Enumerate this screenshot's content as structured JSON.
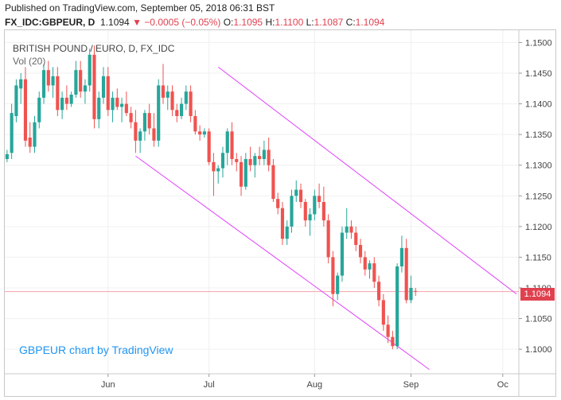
{
  "header": {
    "published": "Published on TradingView.com, September 05, 2018 06:31 BST",
    "symbol": "FX_IDC:GBPEUR, D",
    "last": "1.1094",
    "change": "−0.0005 (−0.05%)",
    "open_key": "O:",
    "open_val": "1.1095",
    "high_key": "H:",
    "high_val": "1.1100",
    "low_key": "L:",
    "low_val": "1.1087",
    "close_key": "C:",
    "close_val": "1.1094",
    "down_arrow": "▼"
  },
  "legend": {
    "title": "BRITISH POUND / EURO, D, FX_IDC",
    "volume": "Vol (20)"
  },
  "watermark": "GBPEUR chart by TradingView",
  "price_tag": "1.1094",
  "colors": {
    "up": "#26a69a",
    "down": "#ef5350",
    "channel": "#e040fb",
    "price_line": "#f4a0a8",
    "axis_text": "#444444"
  },
  "chart_data": {
    "type": "candlestick",
    "symbol": "GBPEUR",
    "interval": "D",
    "ylim": [
      1.096,
      1.152
    ],
    "y_ticks": [
      "1.1500",
      "1.1450",
      "1.1400",
      "1.1350",
      "1.1300",
      "1.1250",
      "1.1200",
      "1.1150",
      "1.1100",
      "1.1050",
      "1.1000"
    ],
    "x_ticks": [
      {
        "label": "Jun",
        "index": 22
      },
      {
        "label": "Jul",
        "index": 44
      },
      {
        "label": "Aug",
        "index": 67
      },
      {
        "label": "Sep",
        "index": 88
      },
      {
        "label": "Oc",
        "index": 108
      }
    ],
    "x_count": 112,
    "last_price": 1.1094,
    "candles": [
      {
        "o": 1.131,
        "h": 1.1325,
        "l": 1.1305,
        "c": 1.1318
      },
      {
        "o": 1.132,
        "h": 1.14,
        "l": 1.131,
        "c": 1.1385
      },
      {
        "o": 1.138,
        "h": 1.144,
        "l": 1.137,
        "c": 1.143
      },
      {
        "o": 1.1425,
        "h": 1.145,
        "l": 1.14,
        "c": 1.144
      },
      {
        "o": 1.144,
        "h": 1.146,
        "l": 1.133,
        "c": 1.134
      },
      {
        "o": 1.1345,
        "h": 1.137,
        "l": 1.132,
        "c": 1.133
      },
      {
        "o": 1.133,
        "h": 1.138,
        "l": 1.132,
        "c": 1.137
      },
      {
        "o": 1.137,
        "h": 1.142,
        "l": 1.136,
        "c": 1.141
      },
      {
        "o": 1.141,
        "h": 1.1465,
        "l": 1.14,
        "c": 1.1455
      },
      {
        "o": 1.1455,
        "h": 1.147,
        "l": 1.142,
        "c": 1.143
      },
      {
        "o": 1.143,
        "h": 1.146,
        "l": 1.141,
        "c": 1.1445
      },
      {
        "o": 1.1445,
        "h": 1.146,
        "l": 1.138,
        "c": 1.139
      },
      {
        "o": 1.139,
        "h": 1.142,
        "l": 1.1375,
        "c": 1.141
      },
      {
        "o": 1.141,
        "h": 1.143,
        "l": 1.139,
        "c": 1.14
      },
      {
        "o": 1.14,
        "h": 1.142,
        "l": 1.1395,
        "c": 1.1415
      },
      {
        "o": 1.1415,
        "h": 1.147,
        "l": 1.141,
        "c": 1.1455
      },
      {
        "o": 1.1455,
        "h": 1.147,
        "l": 1.141,
        "c": 1.142
      },
      {
        "o": 1.142,
        "h": 1.144,
        "l": 1.14,
        "c": 1.143
      },
      {
        "o": 1.143,
        "h": 1.149,
        "l": 1.142,
        "c": 1.148
      },
      {
        "o": 1.148,
        "h": 1.1495,
        "l": 1.136,
        "c": 1.1375
      },
      {
        "o": 1.1375,
        "h": 1.142,
        "l": 1.136,
        "c": 1.141
      },
      {
        "o": 1.141,
        "h": 1.146,
        "l": 1.14,
        "c": 1.1445
      },
      {
        "o": 1.1445,
        "h": 1.146,
        "l": 1.138,
        "c": 1.139
      },
      {
        "o": 1.139,
        "h": 1.142,
        "l": 1.137,
        "c": 1.141
      },
      {
        "o": 1.141,
        "h": 1.1425,
        "l": 1.139,
        "c": 1.1395
      },
      {
        "o": 1.1395,
        "h": 1.141,
        "l": 1.137,
        "c": 1.14
      },
      {
        "o": 1.14,
        "h": 1.142,
        "l": 1.138,
        "c": 1.1385
      },
      {
        "o": 1.1385,
        "h": 1.1395,
        "l": 1.136,
        "c": 1.137
      },
      {
        "o": 1.137,
        "h": 1.139,
        "l": 1.132,
        "c": 1.134
      },
      {
        "o": 1.134,
        "h": 1.136,
        "l": 1.132,
        "c": 1.1355
      },
      {
        "o": 1.1355,
        "h": 1.139,
        "l": 1.134,
        "c": 1.1385
      },
      {
        "o": 1.1385,
        "h": 1.14,
        "l": 1.135,
        "c": 1.136
      },
      {
        "o": 1.136,
        "h": 1.1385,
        "l": 1.133,
        "c": 1.134
      },
      {
        "o": 1.134,
        "h": 1.144,
        "l": 1.133,
        "c": 1.143
      },
      {
        "o": 1.143,
        "h": 1.1465,
        "l": 1.14,
        "c": 1.141
      },
      {
        "o": 1.141,
        "h": 1.143,
        "l": 1.139,
        "c": 1.142
      },
      {
        "o": 1.142,
        "h": 1.143,
        "l": 1.138,
        "c": 1.139
      },
      {
        "o": 1.139,
        "h": 1.14,
        "l": 1.137,
        "c": 1.138
      },
      {
        "o": 1.138,
        "h": 1.141,
        "l": 1.1375,
        "c": 1.14
      },
      {
        "o": 1.14,
        "h": 1.143,
        "l": 1.139,
        "c": 1.142
      },
      {
        "o": 1.142,
        "h": 1.143,
        "l": 1.137,
        "c": 1.138
      },
      {
        "o": 1.138,
        "h": 1.139,
        "l": 1.135,
        "c": 1.1355
      },
      {
        "o": 1.1355,
        "h": 1.1365,
        "l": 1.134,
        "c": 1.135
      },
      {
        "o": 1.135,
        "h": 1.136,
        "l": 1.1345,
        "c": 1.1355
      },
      {
        "o": 1.1355,
        "h": 1.136,
        "l": 1.13,
        "c": 1.1305
      },
      {
        "o": 1.1305,
        "h": 1.132,
        "l": 1.125,
        "c": 1.129
      },
      {
        "o": 1.129,
        "h": 1.13,
        "l": 1.127,
        "c": 1.1295
      },
      {
        "o": 1.1295,
        "h": 1.133,
        "l": 1.128,
        "c": 1.132
      },
      {
        "o": 1.132,
        "h": 1.136,
        "l": 1.13,
        "c": 1.1355
      },
      {
        "o": 1.1355,
        "h": 1.137,
        "l": 1.13,
        "c": 1.131
      },
      {
        "o": 1.131,
        "h": 1.132,
        "l": 1.129,
        "c": 1.1305
      },
      {
        "o": 1.1305,
        "h": 1.1315,
        "l": 1.125,
        "c": 1.1265
      },
      {
        "o": 1.1265,
        "h": 1.132,
        "l": 1.126,
        "c": 1.131
      },
      {
        "o": 1.131,
        "h": 1.133,
        "l": 1.129,
        "c": 1.13
      },
      {
        "o": 1.13,
        "h": 1.132,
        "l": 1.128,
        "c": 1.1315
      },
      {
        "o": 1.1315,
        "h": 1.133,
        "l": 1.13,
        "c": 1.131
      },
      {
        "o": 1.131,
        "h": 1.134,
        "l": 1.13,
        "c": 1.1325
      },
      {
        "o": 1.1325,
        "h": 1.1345,
        "l": 1.129,
        "c": 1.13
      },
      {
        "o": 1.13,
        "h": 1.131,
        "l": 1.124,
        "c": 1.1245
      },
      {
        "o": 1.1245,
        "h": 1.1255,
        "l": 1.122,
        "c": 1.123
      },
      {
        "o": 1.123,
        "h": 1.124,
        "l": 1.117,
        "c": 1.118
      },
      {
        "o": 1.118,
        "h": 1.121,
        "l": 1.117,
        "c": 1.12
      },
      {
        "o": 1.12,
        "h": 1.126,
        "l": 1.119,
        "c": 1.125
      },
      {
        "o": 1.125,
        "h": 1.1275,
        "l": 1.124,
        "c": 1.126
      },
      {
        "o": 1.126,
        "h": 1.127,
        "l": 1.123,
        "c": 1.124
      },
      {
        "o": 1.124,
        "h": 1.1245,
        "l": 1.12,
        "c": 1.121
      },
      {
        "o": 1.121,
        "h": 1.123,
        "l": 1.1185,
        "c": 1.122
      },
      {
        "o": 1.122,
        "h": 1.126,
        "l": 1.121,
        "c": 1.125
      },
      {
        "o": 1.125,
        "h": 1.127,
        "l": 1.123,
        "c": 1.124
      },
      {
        "o": 1.124,
        "h": 1.1265,
        "l": 1.12,
        "c": 1.121
      },
      {
        "o": 1.121,
        "h": 1.122,
        "l": 1.114,
        "c": 1.115
      },
      {
        "o": 1.115,
        "h": 1.116,
        "l": 1.107,
        "c": 1.109
      },
      {
        "o": 1.109,
        "h": 1.1125,
        "l": 1.108,
        "c": 1.112
      },
      {
        "o": 1.112,
        "h": 1.12,
        "l": 1.111,
        "c": 1.119
      },
      {
        "o": 1.119,
        "h": 1.123,
        "l": 1.118,
        "c": 1.12
      },
      {
        "o": 1.12,
        "h": 1.121,
        "l": 1.118,
        "c": 1.119
      },
      {
        "o": 1.119,
        "h": 1.12,
        "l": 1.116,
        "c": 1.117
      },
      {
        "o": 1.117,
        "h": 1.118,
        "l": 1.114,
        "c": 1.115
      },
      {
        "o": 1.115,
        "h": 1.116,
        "l": 1.112,
        "c": 1.113
      },
      {
        "o": 1.113,
        "h": 1.1145,
        "l": 1.1115,
        "c": 1.114
      },
      {
        "o": 1.114,
        "h": 1.115,
        "l": 1.11,
        "c": 1.111
      },
      {
        "o": 1.111,
        "h": 1.112,
        "l": 1.107,
        "c": 1.108
      },
      {
        "o": 1.108,
        "h": 1.109,
        "l": 1.103,
        "c": 1.104
      },
      {
        "o": 1.104,
        "h": 1.1055,
        "l": 1.101,
        "c": 1.102
      },
      {
        "o": 1.102,
        "h": 1.103,
        "l": 1.1,
        "c": 1.1005
      },
      {
        "o": 1.1005,
        "h": 1.114,
        "l": 1.1,
        "c": 1.1135
      },
      {
        "o": 1.1135,
        "h": 1.1185,
        "l": 1.1125,
        "c": 1.1165
      },
      {
        "o": 1.1165,
        "h": 1.118,
        "l": 1.1075,
        "c": 1.108
      },
      {
        "o": 1.108,
        "h": 1.112,
        "l": 1.1075,
        "c": 1.11
      },
      {
        "o": 1.1095,
        "h": 1.11,
        "l": 1.1087,
        "c": 1.1094
      }
    ],
    "channel": {
      "upper": {
        "from": {
          "index": 46,
          "price": 1.146
        },
        "to": {
          "index": 111,
          "price": 1.109
        }
      },
      "lower": {
        "from": {
          "index": 28,
          "price": 1.1315
        },
        "to": {
          "index": 92,
          "price": 1.0967
        }
      }
    }
  }
}
